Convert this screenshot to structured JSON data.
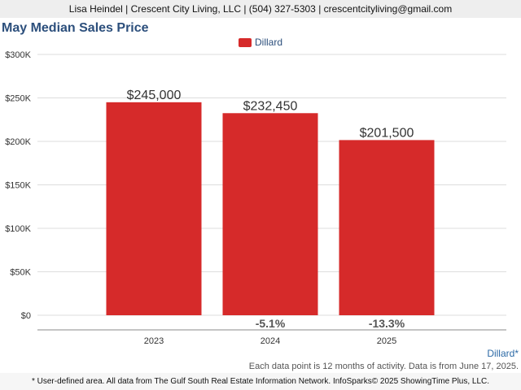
{
  "header": {
    "contact_line": "Lisa Heindel | Crescent City Living, LLC | (504) 327-5303 | crescentcityliving@gmail.com"
  },
  "footer": {
    "area_label": "Dillard*",
    "data_note": "Each data point is 12 months of activity. Data is from June 17, 2025.",
    "disclaimer": "* User-defined area. All data from The Gulf South Real Estate Information Network. InfoSparks© 2025 ShowingTime Plus, LLC."
  },
  "colors": {
    "bar": "#d62a2a",
    "title": "#2c4f7c",
    "grid": "#dddddd"
  },
  "chart_data": {
    "type": "bar",
    "title": "May Median Sales Price",
    "categories": [
      "2023",
      "2024",
      "2025"
    ],
    "series": [
      {
        "name": "Dillard",
        "values": [
          245000,
          232450,
          201500
        ],
        "value_labels": [
          "$245,000",
          "$232,450",
          "$201,500"
        ]
      }
    ],
    "change_labels": [
      "",
      "-5.1%",
      "-13.3%"
    ],
    "y_ticks": [
      0,
      50000,
      100000,
      150000,
      200000,
      250000,
      300000
    ],
    "y_tick_labels": [
      "$0",
      "$50K",
      "$100K",
      "$150K",
      "$200K",
      "$250K",
      "$300K"
    ],
    "ylim": [
      0,
      300000
    ],
    "xlabel": "",
    "ylabel": "",
    "grid": true,
    "legend_position": "top-center"
  }
}
